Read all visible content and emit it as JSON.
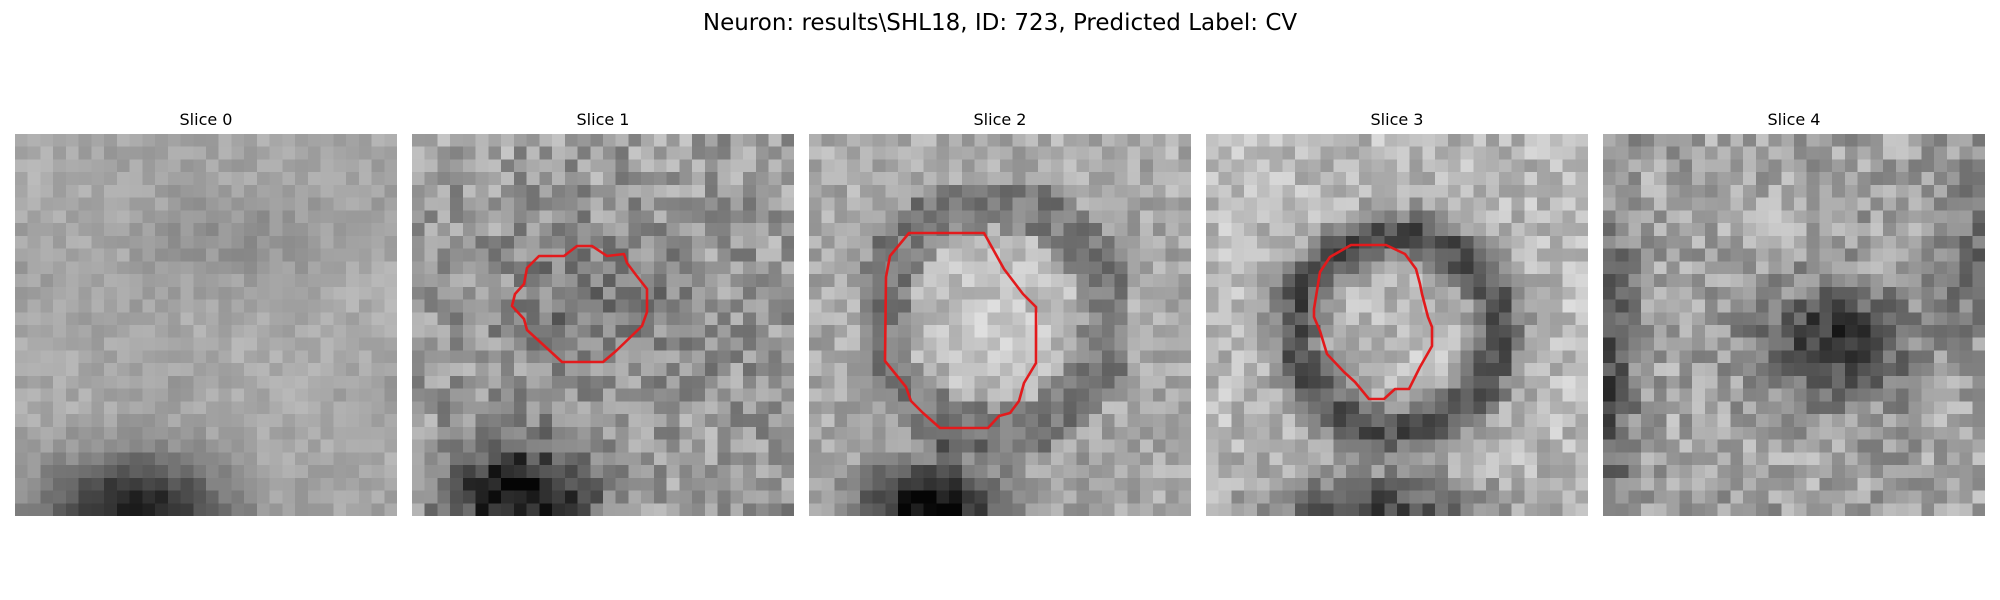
{
  "figure": {
    "title": "Neuron: results\\SHL18, ID: 723, Predicted Label: CV"
  },
  "panels": [
    {
      "title": "Slice 0",
      "has_roi": false,
      "dark_blob": "bottom-left"
    },
    {
      "title": "Slice 1",
      "has_roi": true,
      "dark_blob": "bottom-left"
    },
    {
      "title": "Slice 2",
      "has_roi": true,
      "dark_blob": "bottom-left"
    },
    {
      "title": "Slice 3",
      "has_roi": true,
      "dark_blob": "ring-around-roi"
    },
    {
      "title": "Slice 4",
      "has_roi": false,
      "dark_blob": "center-right"
    }
  ],
  "colors": {
    "roi_outline": "#e31a1c",
    "colormap": "grayscale"
  }
}
